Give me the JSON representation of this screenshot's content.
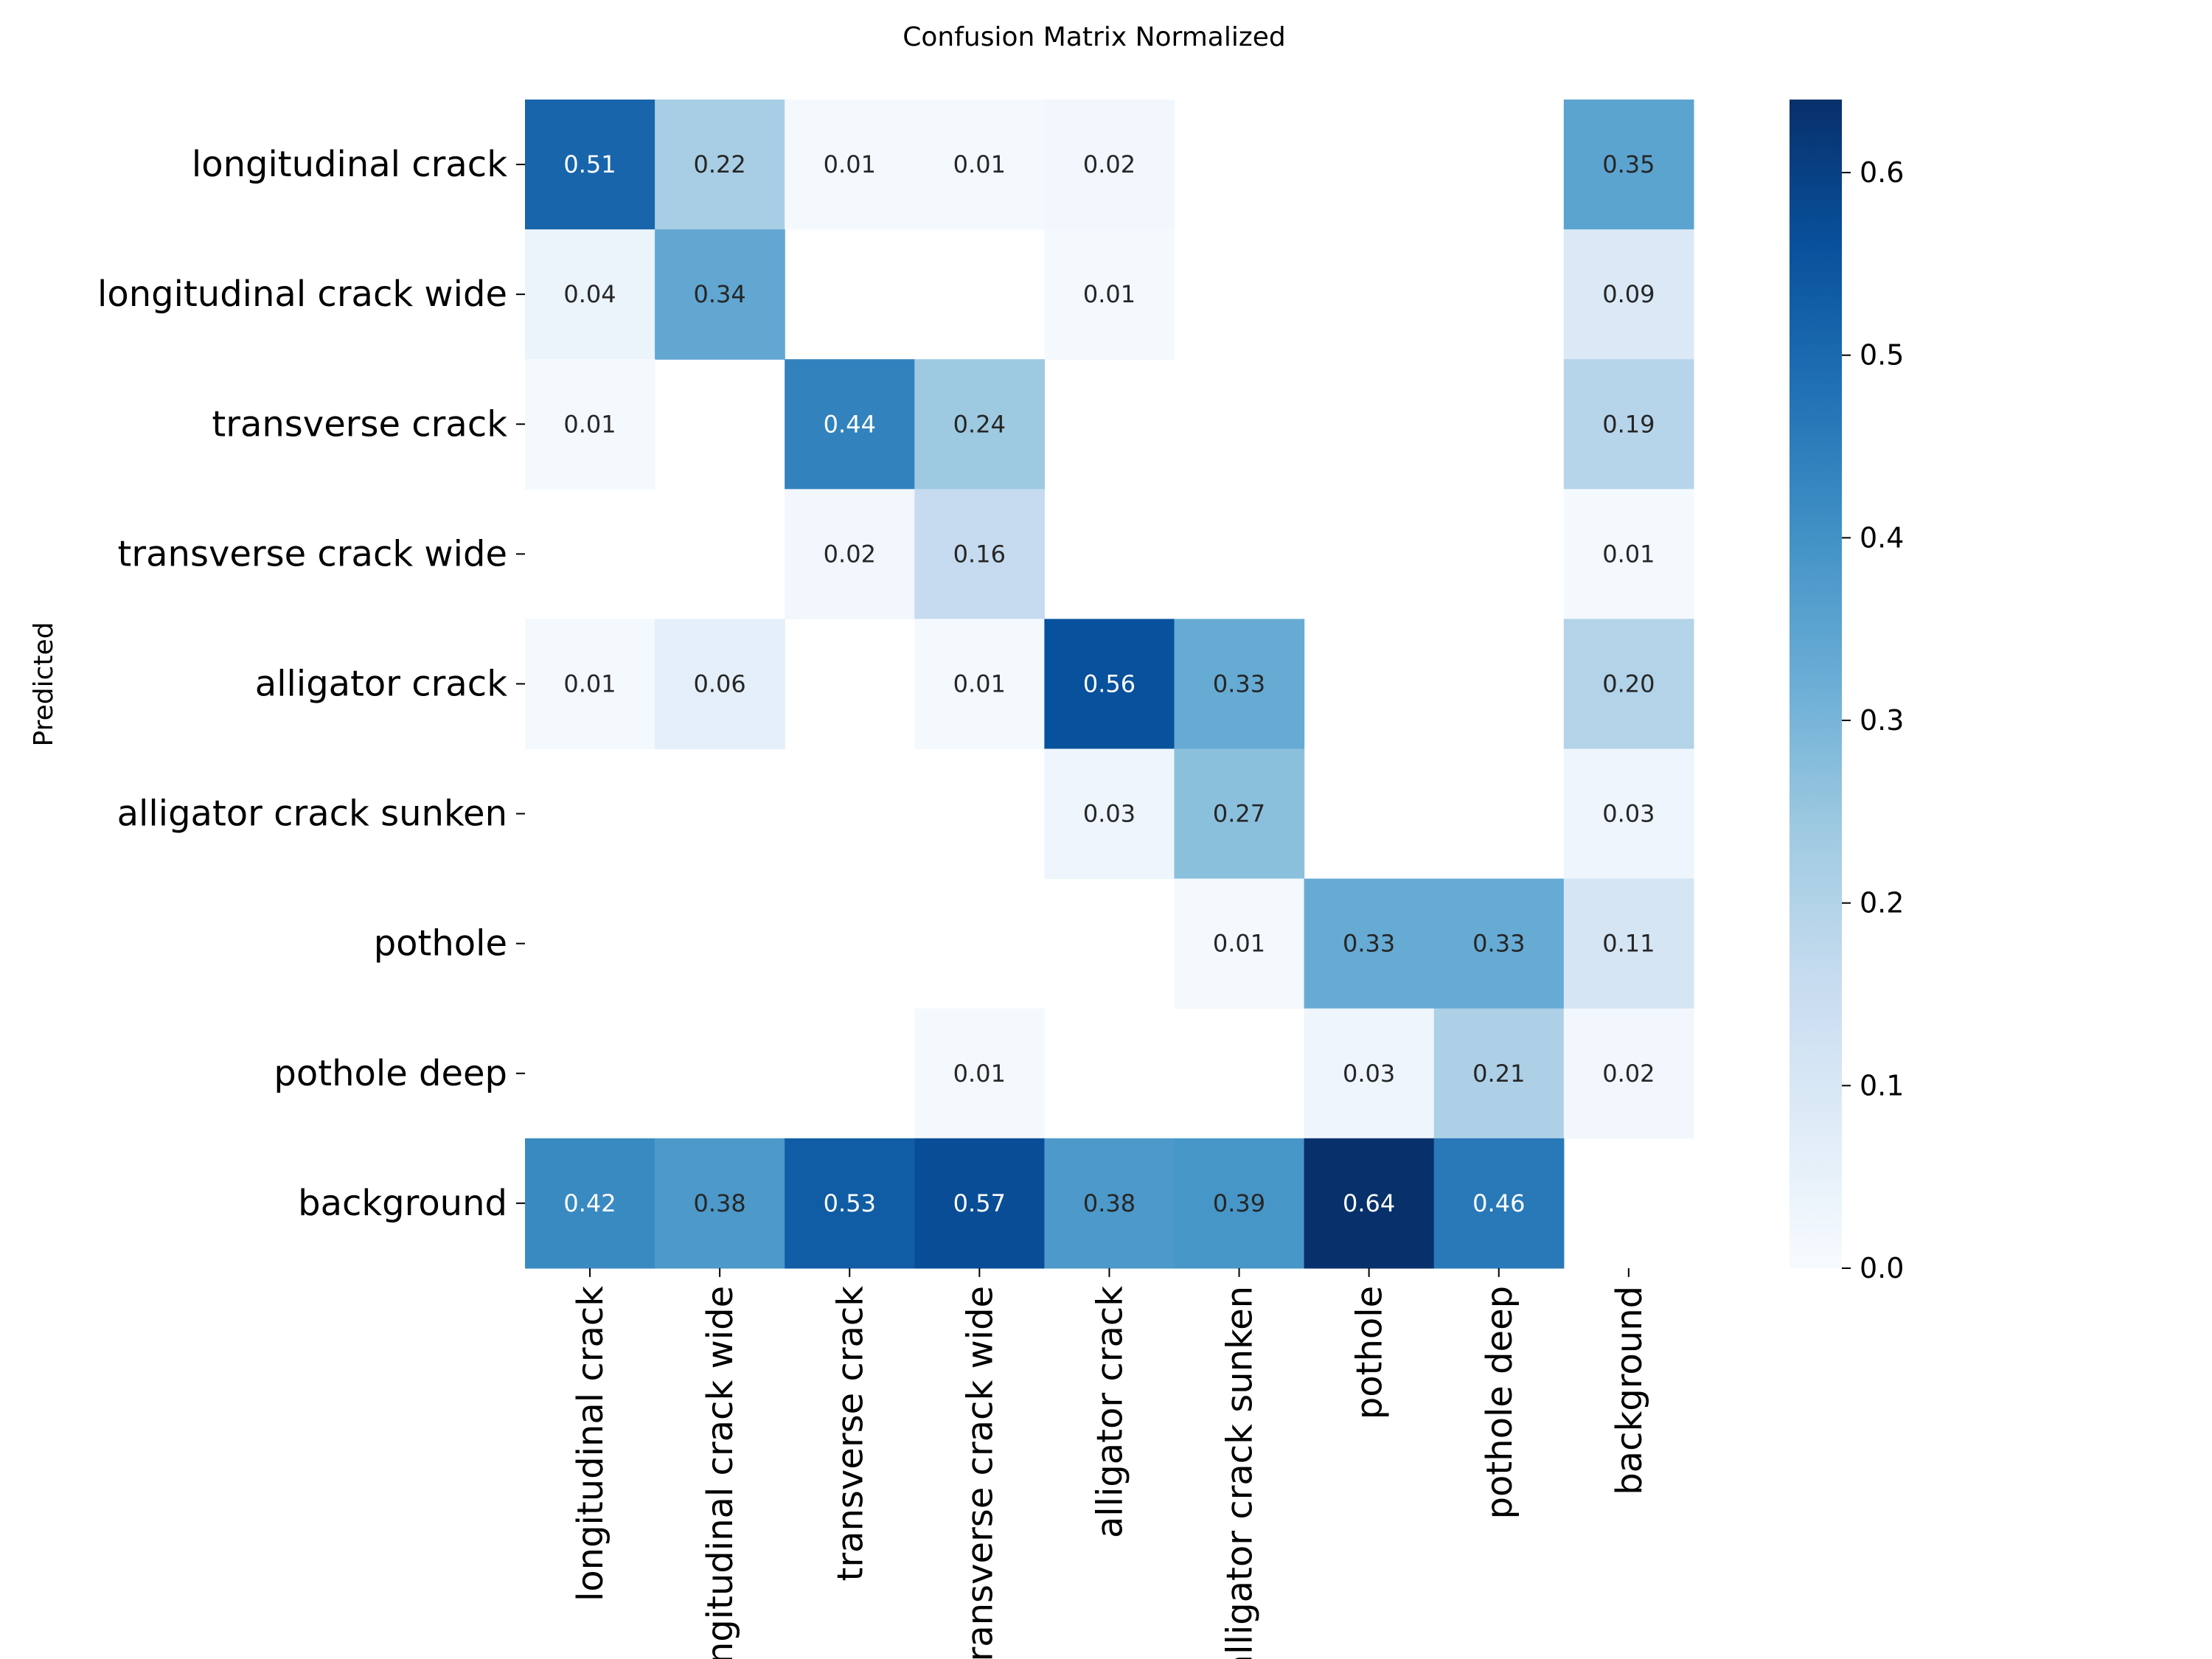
{
  "chart_data": {
    "type": "heatmap",
    "title": "Confusion Matrix Normalized",
    "ylabel": "Predicted",
    "xlabel": "",
    "row_labels": [
      "longitudinal crack",
      "longitudinal crack wide",
      "transverse crack",
      "transverse crack wide",
      "alligator crack",
      "alligator crack sunken",
      "pothole",
      "pothole deep",
      "background"
    ],
    "col_labels": [
      "longitudinal crack",
      "longitudinal crack wide",
      "transverse crack",
      "transverse crack wide",
      "alligator crack",
      "alligator crack sunken",
      "pothole",
      "pothole deep",
      "background"
    ],
    "values": [
      [
        0.51,
        0.22,
        0.01,
        0.01,
        0.02,
        null,
        null,
        null,
        0.35
      ],
      [
        0.04,
        0.34,
        null,
        null,
        0.01,
        null,
        null,
        null,
        0.09
      ],
      [
        0.01,
        null,
        0.44,
        0.24,
        null,
        null,
        null,
        null,
        0.19
      ],
      [
        null,
        null,
        0.02,
        0.16,
        null,
        null,
        null,
        null,
        0.01
      ],
      [
        0.01,
        0.06,
        null,
        0.01,
        0.56,
        0.33,
        null,
        null,
        0.2
      ],
      [
        null,
        null,
        null,
        null,
        0.03,
        0.27,
        null,
        null,
        0.03
      ],
      [
        null,
        null,
        null,
        null,
        null,
        0.01,
        0.33,
        0.33,
        0.11
      ],
      [
        null,
        null,
        null,
        0.01,
        null,
        null,
        0.03,
        0.21,
        0.02
      ],
      [
        0.42,
        0.38,
        0.53,
        0.57,
        0.38,
        0.39,
        0.64,
        0.46,
        null
      ]
    ],
    "colorbar": {
      "colormap": "Blues",
      "min": 0.0,
      "max": 0.64,
      "ticks": [
        0.0,
        0.1,
        0.2,
        0.3,
        0.4,
        0.5,
        0.6
      ],
      "tick_labels": [
        "0.0",
        "0.1",
        "0.2",
        "0.3",
        "0.4",
        "0.5",
        "0.6"
      ]
    },
    "value_format": "2 decimals",
    "grid": false
  }
}
